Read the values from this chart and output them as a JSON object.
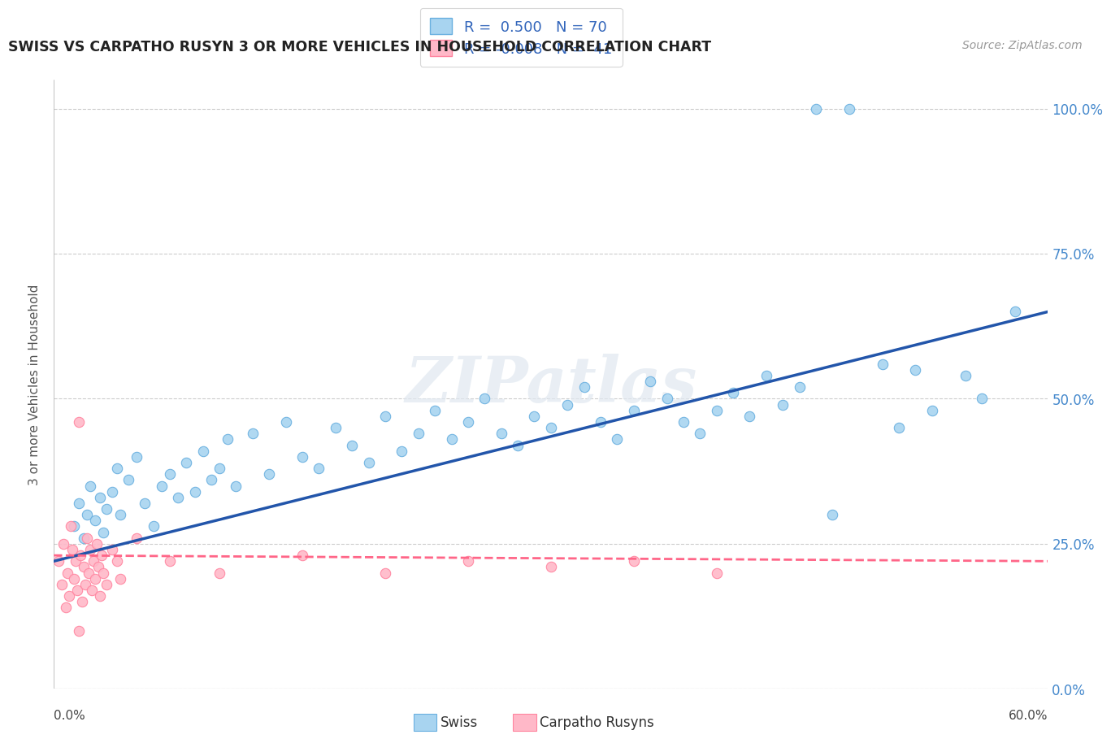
{
  "title": "SWISS VS CARPATHO RUSYN 3 OR MORE VEHICLES IN HOUSEHOLD CORRELATION CHART",
  "source": "Source: ZipAtlas.com",
  "ylabel": "3 or more Vehicles in Household",
  "ytick_vals": [
    0,
    25,
    50,
    75,
    100
  ],
  "xlim": [
    0,
    60
  ],
  "ylim": [
    0,
    105
  ],
  "swiss_R": 0.5,
  "swiss_N": 70,
  "carpatho_R": -0.008,
  "carpatho_N": 41,
  "swiss_color": "#a8d4f0",
  "swiss_edge_color": "#6ab0e0",
  "carpatho_color": "#ffb8c8",
  "carpatho_edge_color": "#ff85a0",
  "trend_swiss_color": "#2255aa",
  "trend_carpatho_color": "#ff6688",
  "watermark": "ZIPatlas",
  "trend_swiss_x0": 0,
  "trend_swiss_y0": 22,
  "trend_swiss_x1": 60,
  "trend_swiss_y1": 65,
  "trend_carpatho_x0": 0,
  "trend_carpatho_y0": 23,
  "trend_carpatho_x1": 60,
  "trend_carpatho_y1": 22,
  "swiss_x": [
    1.2,
    1.5,
    1.8,
    2.0,
    2.2,
    2.5,
    2.8,
    3.0,
    3.2,
    3.5,
    3.8,
    4.0,
    4.5,
    5.0,
    5.5,
    6.0,
    6.5,
    7.0,
    7.5,
    8.0,
    8.5,
    9.0,
    9.5,
    10.0,
    10.5,
    11.0,
    12.0,
    13.0,
    14.0,
    15.0,
    16.0,
    17.0,
    18.0,
    19.0,
    20.0,
    21.0,
    22.0,
    23.0,
    24.0,
    25.0,
    26.0,
    27.0,
    28.0,
    29.0,
    30.0,
    31.0,
    32.0,
    33.0,
    34.0,
    35.0,
    36.0,
    37.0,
    38.0,
    39.0,
    40.0,
    41.0,
    42.0,
    43.0,
    44.0,
    45.0,
    50.0,
    52.0,
    53.0,
    55.0,
    56.0,
    46.0,
    48.0,
    58.0,
    47.0,
    51.0
  ],
  "swiss_y": [
    28,
    32,
    26,
    30,
    35,
    29,
    33,
    27,
    31,
    34,
    38,
    30,
    36,
    40,
    32,
    28,
    35,
    37,
    33,
    39,
    34,
    41,
    36,
    38,
    43,
    35,
    44,
    37,
    46,
    40,
    38,
    45,
    42,
    39,
    47,
    41,
    44,
    48,
    43,
    46,
    50,
    44,
    42,
    47,
    45,
    49,
    52,
    46,
    43,
    48,
    53,
    50,
    46,
    44,
    48,
    51,
    47,
    54,
    49,
    52,
    56,
    55,
    48,
    54,
    50,
    100,
    100,
    65,
    30,
    45
  ],
  "carpatho_x": [
    0.3,
    0.5,
    0.6,
    0.7,
    0.8,
    0.9,
    1.0,
    1.1,
    1.2,
    1.3,
    1.4,
    1.5,
    1.6,
    1.7,
    1.8,
    1.9,
    2.0,
    2.1,
    2.2,
    2.3,
    2.4,
    2.5,
    2.6,
    2.7,
    2.8,
    2.9,
    3.0,
    3.2,
    3.5,
    3.8,
    4.0,
    5.0,
    7.0,
    10.0,
    15.0,
    20.0,
    25.0,
    30.0,
    35.0,
    40.0,
    1.5
  ],
  "carpatho_y": [
    22,
    18,
    25,
    14,
    20,
    16,
    28,
    24,
    19,
    22,
    17,
    46,
    23,
    15,
    21,
    18,
    26,
    20,
    24,
    17,
    22,
    19,
    25,
    21,
    16,
    23,
    20,
    18,
    24,
    22,
    19,
    26,
    22,
    20,
    23,
    20,
    22,
    21,
    22,
    20,
    10
  ]
}
